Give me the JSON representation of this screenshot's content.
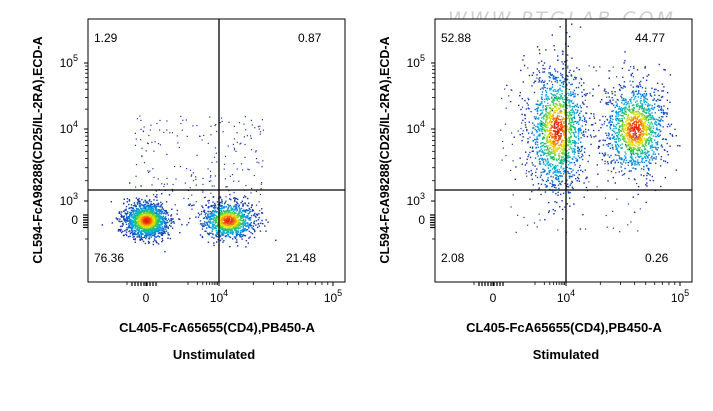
{
  "watermark": "WWW.PTGLAB.COM",
  "chart_data": [
    {
      "type": "scatter",
      "subtype": "flow-cytometry-density-dot-plot",
      "title": "Unstimulated",
      "xlabel": "CL405-FcA65655(CD4),PB450-A",
      "ylabel": "CL594-FcA98288(CD25/IL-2RA),ECD-A",
      "x_ticks": [
        {
          "base": "0",
          "exp": ""
        },
        {
          "base": "10",
          "exp": "4"
        },
        {
          "base": "10",
          "exp": "5"
        }
      ],
      "y_ticks": [
        {
          "base": "0",
          "exp": ""
        },
        {
          "base": "10",
          "exp": "3"
        },
        {
          "base": "10",
          "exp": "4"
        },
        {
          "base": "10",
          "exp": "5"
        }
      ],
      "x_scale": "biexponential",
      "y_scale": "biexponential",
      "quadrant_gate": {
        "x": 10000,
        "y": 1500
      },
      "quadrants": {
        "top_left": "1.29",
        "top_right": "0.87",
        "bottom_left": "76.36",
        "bottom_right": "21.48"
      },
      "populations": [
        {
          "name": "CD4- CD25-",
          "x_center": 0,
          "y_center": 0,
          "density": "high",
          "percent": 76.36
        },
        {
          "name": "CD4+ CD25-",
          "x_center": 12000,
          "y_center": 0,
          "density": "high",
          "percent": 21.48
        }
      ]
    },
    {
      "type": "scatter",
      "subtype": "flow-cytometry-density-dot-plot",
      "title": "Stimulated",
      "xlabel": "CL405-FcA65655(CD4),PB450-A",
      "ylabel": "CL594-FcA98288(CD25/IL-2RA),ECD-A",
      "x_ticks": [
        {
          "base": "0",
          "exp": ""
        },
        {
          "base": "10",
          "exp": "4"
        },
        {
          "base": "10",
          "exp": "5"
        }
      ],
      "y_ticks": [
        {
          "base": "0",
          "exp": ""
        },
        {
          "base": "10",
          "exp": "3"
        },
        {
          "base": "10",
          "exp": "4"
        },
        {
          "base": "10",
          "exp": "5"
        }
      ],
      "x_scale": "biexponential",
      "y_scale": "biexponential",
      "quadrant_gate": {
        "x": 10000,
        "y": 1500
      },
      "quadrants": {
        "top_left": "52.88",
        "top_right": "44.77",
        "bottom_left": "2.08",
        "bottom_right": "0.26"
      },
      "populations": [
        {
          "name": "CD4- CD25+",
          "x_center": 5000,
          "y_center": 10000,
          "density": "high",
          "percent": 52.88
        },
        {
          "name": "CD4+ CD25+",
          "x_center": 40000,
          "y_center": 10000,
          "density": "high",
          "percent": 44.77
        }
      ]
    }
  ]
}
